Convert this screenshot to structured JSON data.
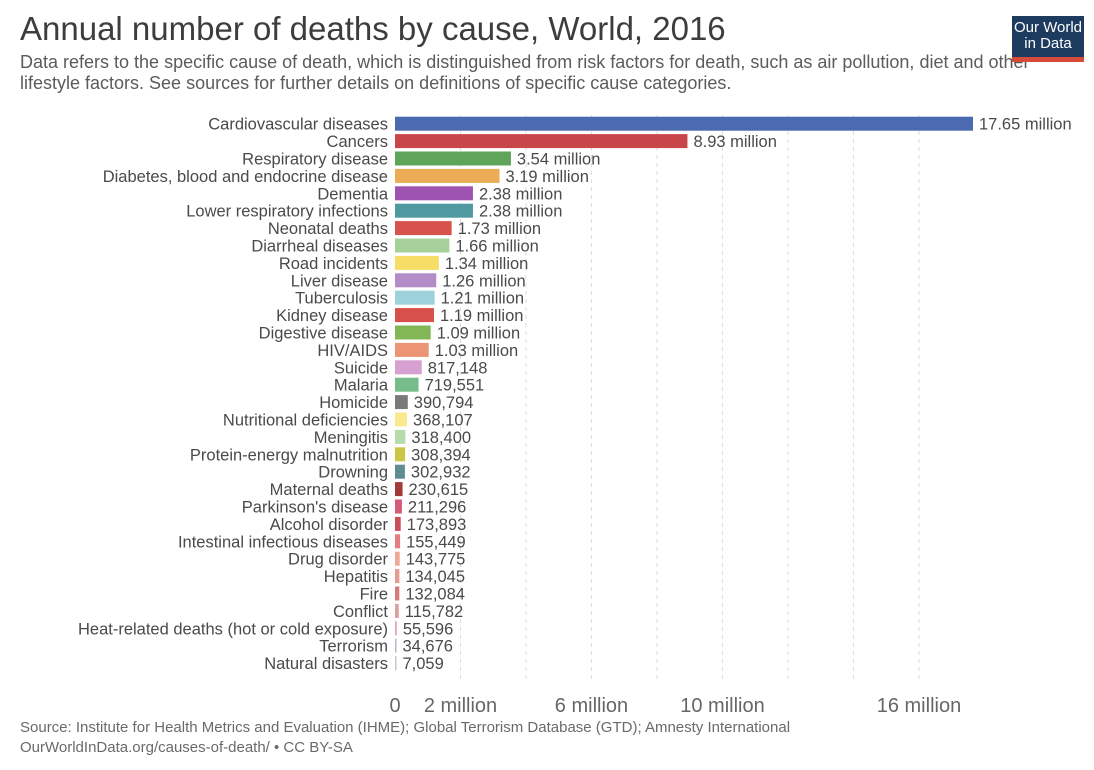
{
  "title": "Annual number of deaths by cause, World, 2016",
  "subtitle": "Data refers to the specific cause of death, which is distinguished from risk factors for death, such as air pollution, diet and other lifestyle factors. See sources for further details on definitions of specific cause categories.",
  "logo": {
    "line1": "Our World",
    "line2": "in Data"
  },
  "source_line1": "Source: Institute for Health Metrics and Evaluation (IHME); Global Terrorism Database (GTD); Amnesty International",
  "source_line2": "OurWorldInData.org/causes-of-death/ • CC BY-SA",
  "colors": {
    "grid": "#dddddd",
    "logo_bg": "#1d3b5e",
    "logo_accent": "#d64a3a"
  },
  "chart_data": {
    "type": "bar",
    "orientation": "horizontal",
    "xlim": [
      0,
      17650000
    ],
    "x_ticks": [
      {
        "value": 0,
        "label": "0"
      },
      {
        "value": 2000000,
        "label": "2 million"
      },
      {
        "value": 6000000,
        "label": "6 million"
      },
      {
        "value": 10000000,
        "label": "10 million"
      },
      {
        "value": 16000000,
        "label": "16 million"
      }
    ],
    "grid": true,
    "bars": [
      {
        "category": "Cardiovascular diseases",
        "value": 17650000,
        "label": "17.65 million",
        "color": "#4c6aaf"
      },
      {
        "category": "Cancers",
        "value": 8930000,
        "label": "8.93 million",
        "color": "#c8454a"
      },
      {
        "category": "Respiratory disease",
        "value": 3540000,
        "label": "3.54 million",
        "color": "#5ea55a"
      },
      {
        "category": "Diabetes, blood and endocrine disease",
        "value": 3190000,
        "label": "3.19 million",
        "color": "#ebac55"
      },
      {
        "category": "Dementia",
        "value": 2380000,
        "label": "2.38 million",
        "color": "#9f53b1"
      },
      {
        "category": "Lower respiratory infections",
        "value": 2380000,
        "label": "2.38 million",
        "color": "#4e9aa0"
      },
      {
        "category": "Neonatal deaths",
        "value": 1730000,
        "label": "1.73 million",
        "color": "#d8524c"
      },
      {
        "category": "Diarrheal diseases",
        "value": 1660000,
        "label": "1.66 million",
        "color": "#a5d09a"
      },
      {
        "category": "Road incidents",
        "value": 1340000,
        "label": "1.34 million",
        "color": "#f5dd66"
      },
      {
        "category": "Liver disease",
        "value": 1260000,
        "label": "1.26 million",
        "color": "#b48cc7"
      },
      {
        "category": "Tuberculosis",
        "value": 1210000,
        "label": "1.21 million",
        "color": "#9dd1dc"
      },
      {
        "category": "Kidney disease",
        "value": 1190000,
        "label": "1.19 million",
        "color": "#d8504a"
      },
      {
        "category": "Digestive disease",
        "value": 1090000,
        "label": "1.09 million",
        "color": "#83b654"
      },
      {
        "category": "HIV/AIDS",
        "value": 1030000,
        "label": "1.03 million",
        "color": "#eb9574"
      },
      {
        "category": "Suicide",
        "value": 817148,
        "label": "817,148",
        "color": "#d6a1d0"
      },
      {
        "category": "Malaria",
        "value": 719551,
        "label": "719,551",
        "color": "#77bd8a"
      },
      {
        "category": "Homicide",
        "value": 390794,
        "label": "390,794",
        "color": "#7a7a7a"
      },
      {
        "category": "Nutritional deficiencies",
        "value": 368107,
        "label": "368,107",
        "color": "#fbe98f"
      },
      {
        "category": "Meningitis",
        "value": 318400,
        "label": "318,400",
        "color": "#b6dcab"
      },
      {
        "category": "Protein-energy malnutrition",
        "value": 308394,
        "label": "308,394",
        "color": "#cfc544"
      },
      {
        "category": "Drowning",
        "value": 302932,
        "label": "302,932",
        "color": "#5f8c91"
      },
      {
        "category": "Maternal deaths",
        "value": 230615,
        "label": "230,615",
        "color": "#a33a3a"
      },
      {
        "category": "Parkinson's disease",
        "value": 211296,
        "label": "211,296",
        "color": "#d55a77"
      },
      {
        "category": "Alcohol disorder",
        "value": 173893,
        "label": "173,893",
        "color": "#c84e58"
      },
      {
        "category": "Intestinal infectious diseases",
        "value": 155449,
        "label": "155,449",
        "color": "#e77c80"
      },
      {
        "category": "Drug disorder",
        "value": 143775,
        "label": "143,775",
        "color": "#f0a894"
      },
      {
        "category": "Hepatitis",
        "value": 134045,
        "label": "134,045",
        "color": "#e69a90"
      },
      {
        "category": "Fire",
        "value": 132084,
        "label": "132,084",
        "color": "#d67b7b"
      },
      {
        "category": "Conflict",
        "value": 115782,
        "label": "115,782",
        "color": "#dba0a0"
      },
      {
        "category": "Heat-related deaths (hot or cold exposure)",
        "value": 55596,
        "label": "55,596",
        "color": "#dfa8b8"
      },
      {
        "category": "Terrorism",
        "value": 34676,
        "label": "34,676",
        "color": "#b8b8c8"
      },
      {
        "category": "Natural disasters",
        "value": 7059,
        "label": "7,059",
        "color": "#c9c9c9"
      }
    ]
  }
}
